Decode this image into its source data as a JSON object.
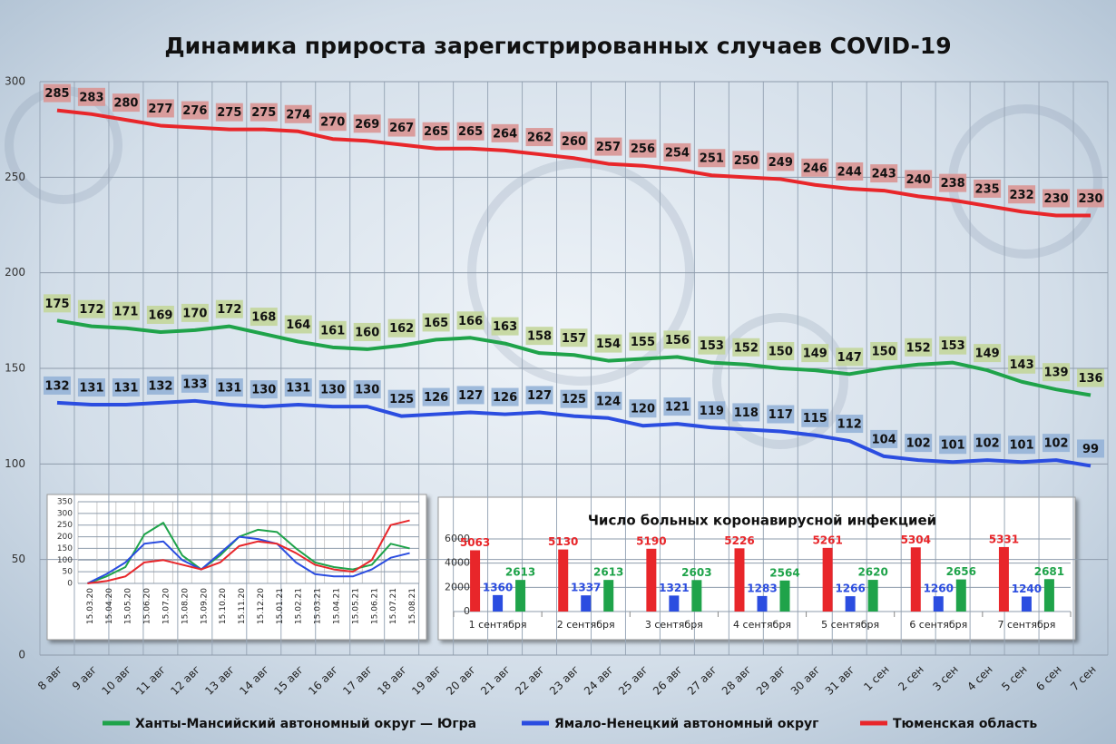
{
  "chart_data": [
    {
      "type": "line",
      "title": "Динамика прироста зарегистрированных случаев COVID-19",
      "categories": [
        "8 авг",
        "9 авг",
        "10 авг",
        "11 авг",
        "12 авг",
        "13 авг",
        "14 авг",
        "15 авг",
        "16 авг",
        "17 авг",
        "18 авг",
        "19 авг",
        "20 авг",
        "21 авг",
        "22 авг",
        "23 авг",
        "24 авг",
        "25 авг",
        "26 авг",
        "27 авг",
        "28 авг",
        "29 авг",
        "30 авг",
        "31 авг",
        "1 сен",
        "2 сен",
        "3 сен",
        "4 сен",
        "5 сен",
        "6 сен",
        "7 сен"
      ],
      "series": [
        {
          "name": "Ханты-Мансийский автономный округ — Югра",
          "color": "#1fa34a",
          "label_color": "#c3d69b",
          "values": [
            175,
            172,
            171,
            169,
            170,
            172,
            168,
            164,
            161,
            160,
            162,
            165,
            166,
            163,
            158,
            157,
            154,
            155,
            156,
            153,
            152,
            150,
            149,
            147,
            150,
            152,
            153,
            149,
            143,
            139,
            136
          ]
        },
        {
          "name": "Ямало-Ненецкий автономный округ",
          "color": "#2b4de0",
          "label_color": "#95b3d7",
          "values": [
            132,
            131,
            131,
            132,
            133,
            131,
            130,
            131,
            130,
            130,
            125,
            126,
            127,
            126,
            127,
            125,
            124,
            120,
            121,
            119,
            118,
            117,
            115,
            112,
            104,
            102,
            101,
            102,
            101,
            102,
            99
          ]
        },
        {
          "name": "Тюменская область",
          "color": "#e8262a",
          "label_color": "#d99594",
          "values": [
            285,
            283,
            280,
            277,
            276,
            275,
            275,
            274,
            270,
            269,
            267,
            265,
            265,
            264,
            262,
            260,
            257,
            256,
            254,
            251,
            250,
            249,
            246,
            244,
            243,
            240,
            238,
            235,
            232,
            230,
            230
          ]
        }
      ],
      "ylim": [
        0,
        300
      ],
      "yticks": [
        0,
        50,
        100,
        150,
        200,
        250,
        300
      ],
      "grid": true,
      "legend": "bottom",
      "data_labels": true
    },
    {
      "type": "line",
      "categories": [
        "15.03.20",
        "15.04.20",
        "15.05.20",
        "15.06.20",
        "15.07.20",
        "15.08.20",
        "15.09.20",
        "15.10.20",
        "15.11.20",
        "15.12.20",
        "15.01.21",
        "15.02.21",
        "15.03.21",
        "15.04.21",
        "15.05.21",
        "15.06.21",
        "15.07.21",
        "15.08.21"
      ],
      "series": [
        {
          "color": "#1fa34a",
          "values": [
            0,
            30,
            70,
            210,
            260,
            120,
            60,
            120,
            200,
            230,
            220,
            150,
            90,
            70,
            60,
            80,
            170,
            150
          ]
        },
        {
          "color": "#2b4de0",
          "values": [
            0,
            40,
            90,
            170,
            180,
            100,
            60,
            130,
            200,
            190,
            170,
            90,
            40,
            30,
            30,
            60,
            110,
            130
          ]
        },
        {
          "color": "#e8262a",
          "values": [
            0,
            10,
            30,
            90,
            100,
            80,
            60,
            90,
            160,
            180,
            170,
            130,
            80,
            60,
            50,
            100,
            250,
            270
          ]
        }
      ],
      "ylim": [
        0,
        350
      ],
      "yticks": [
        0,
        50,
        100,
        150,
        200,
        250,
        300,
        350
      ],
      "grid": true
    },
    {
      "type": "bar",
      "title": "Число больных коронавирусной  инфекцией",
      "categories": [
        "1 сентября",
        "2 сентября",
        "3 сентября",
        "4 сентября",
        "5 сентября",
        "6 сентября",
        "7 сентября"
      ],
      "series": [
        {
          "color": "#e8262a",
          "values": [
            5063,
            5130,
            5190,
            5226,
            5261,
            5304,
            5331
          ]
        },
        {
          "color": "#2b4de0",
          "values": [
            1360,
            1337,
            1321,
            1283,
            1266,
            1260,
            1240
          ]
        },
        {
          "color": "#1fa34a",
          "values": [
            2613,
            2613,
            2603,
            2564,
            2620,
            2656,
            2681
          ]
        }
      ],
      "ylim": [
        0,
        6000
      ],
      "yticks": [
        0,
        2000,
        4000,
        6000
      ],
      "grid": true,
      "data_labels": true
    }
  ]
}
